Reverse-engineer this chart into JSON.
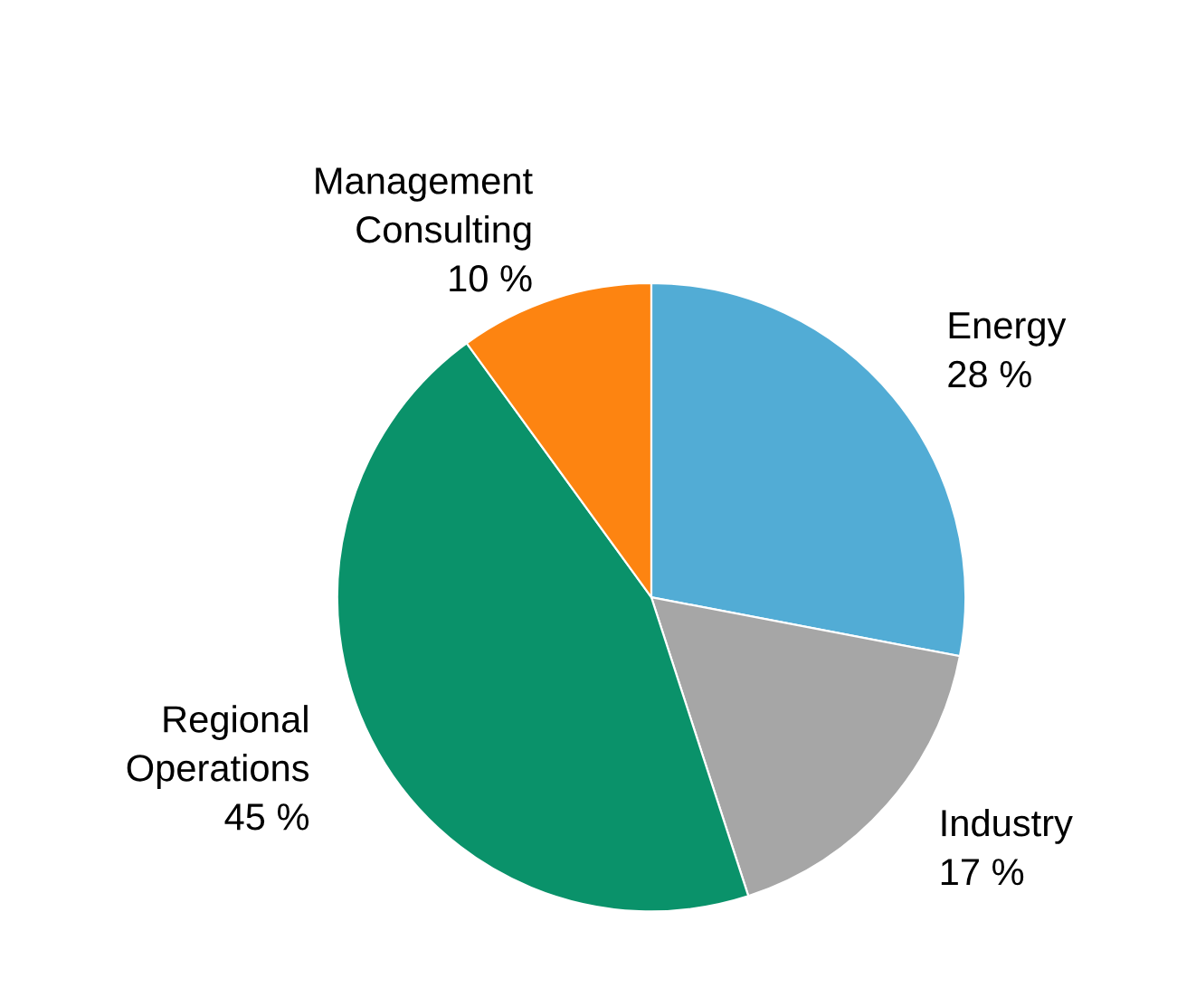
{
  "chart_data": {
    "type": "pie",
    "categories": [
      "Energy",
      "Industry",
      "Regional Operations",
      "Management Consulting"
    ],
    "values": [
      28,
      17,
      45,
      10
    ],
    "colors": [
      "#52acd5",
      "#a6a6a6",
      "#0a926a",
      "#fd8411"
    ],
    "value_labels": [
      "28 %",
      "17 %",
      "45 %",
      "10 %"
    ]
  }
}
